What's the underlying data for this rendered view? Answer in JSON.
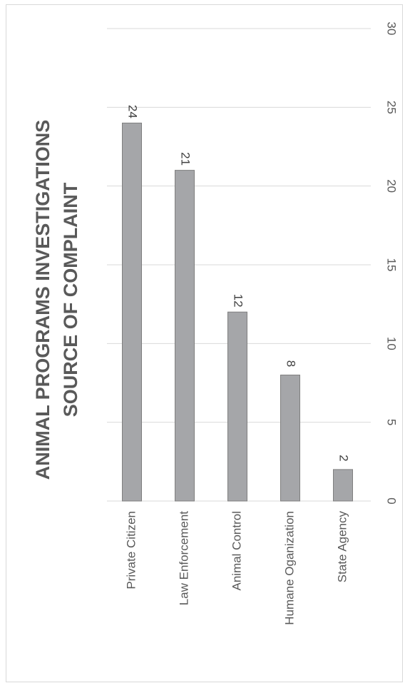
{
  "chart_data": {
    "type": "bar",
    "orientation": "vertical-rotated",
    "title": [
      "ANIMAL PROGRAMS INVESTIGATIONS",
      "SOURCE OF COMPLAINT"
    ],
    "categories": [
      "Private Citizen",
      "Law Enforcement",
      "Animal Control",
      "Humane Oganization",
      "State Agency"
    ],
    "values": [
      24,
      21,
      12,
      8,
      2
    ],
    "ylim": [
      0,
      30
    ],
    "yticks": [
      0,
      5,
      10,
      15,
      20,
      25,
      30
    ],
    "grid": true,
    "data_labels": true,
    "colors": {
      "bar": "#a5a6a9",
      "bar_border": "#7f7f7f",
      "grid": "#d9d9d9",
      "text": "#595959"
    }
  }
}
